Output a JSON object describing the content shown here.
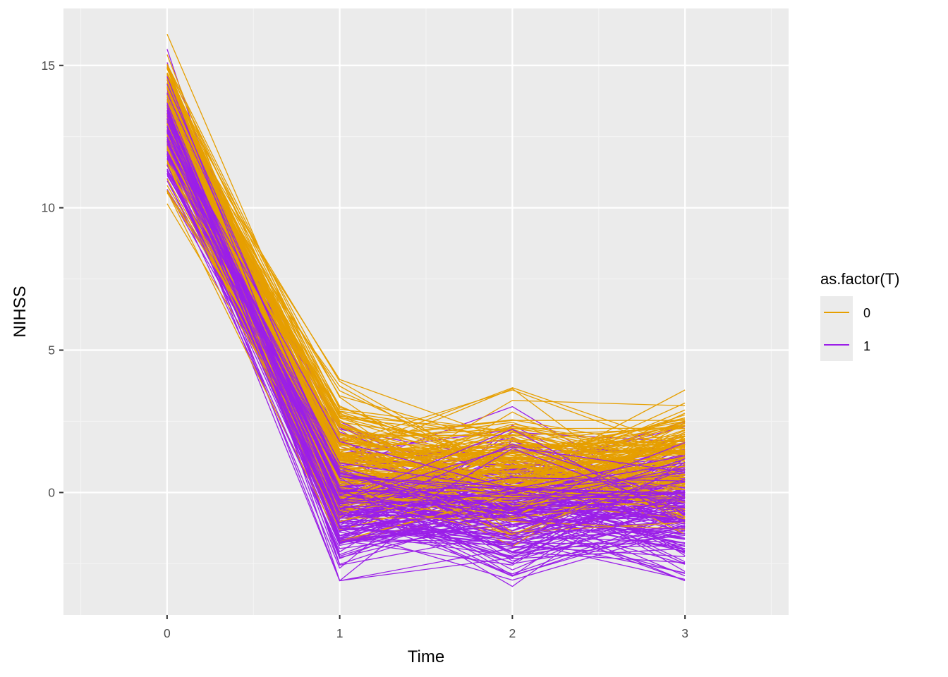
{
  "chart_data": {
    "type": "line",
    "xlabel": "Time",
    "ylabel": "NIHSS",
    "x_ticks": [
      0,
      1,
      2,
      3
    ],
    "y_ticks": [
      0,
      5,
      10,
      15
    ],
    "xlim": [
      -0.6,
      3.6
    ],
    "ylim": [
      -4.3,
      17.0
    ],
    "grid": true,
    "legend_placement": "right",
    "legend": {
      "title": "as.factor(T)",
      "entries": [
        {
          "label": "0",
          "color": "#E69F00"
        },
        {
          "label": "1",
          "color": "#9B1FE8"
        }
      ]
    },
    "series": [
      {
        "group": "0",
        "color": "#E69F00",
        "line_count": 140,
        "summary": {
          "x": [
            0,
            1,
            2,
            3
          ],
          "y_min": [
            10.1,
            -1.7,
            -1.9,
            -1.9
          ],
          "y_mean": [
            13.2,
            1.1,
            0.9,
            0.9
          ],
          "y_max": [
            16.1,
            4.4,
            4.1,
            3.6
          ]
        }
      },
      {
        "group": "1",
        "color": "#9B1FE8",
        "line_count": 160,
        "summary": {
          "x": [
            0,
            1,
            2,
            3
          ],
          "y_min": [
            10.6,
            -3.1,
            -3.3,
            -3.1
          ],
          "y_mean": [
            12.9,
            -0.3,
            -0.4,
            -0.3
          ],
          "y_max": [
            15.7,
            2.7,
            3.1,
            3.1
          ]
        }
      }
    ]
  },
  "style": {
    "panel_bg": "#EBEBEB",
    "grid_major": "#FFFFFF",
    "grid_minor": "#F4F4F4",
    "legend_key_bg": "#EBEBEB"
  }
}
